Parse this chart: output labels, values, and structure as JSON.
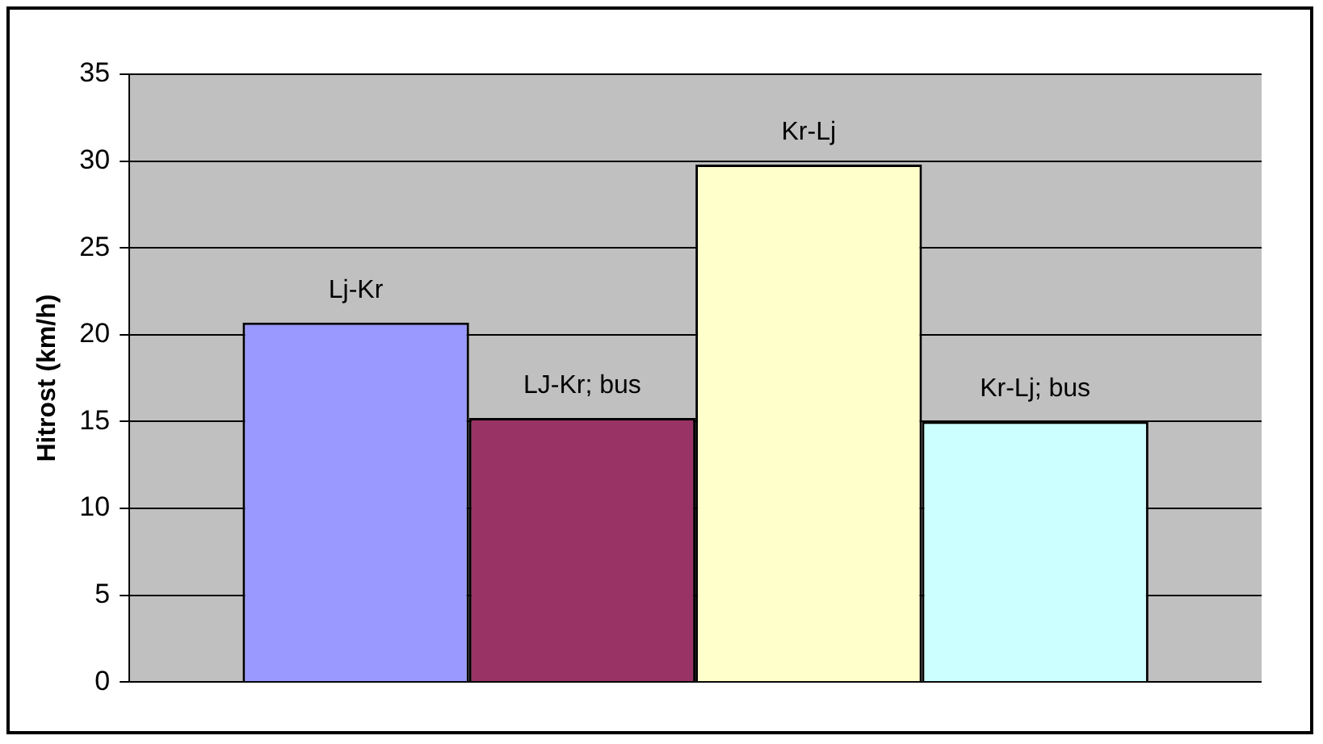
{
  "chart_data": {
    "type": "bar",
    "ylabel": "Hitrost (km/h)",
    "categories": [
      null
    ],
    "series": [
      {
        "name": "Lj-Kr",
        "color": "#9999ff",
        "values": [
          20.7
        ]
      },
      {
        "name": "LJ-Kr; bus",
        "color": "#993366",
        "values": [
          15.2
        ]
      },
      {
        "name": "Kr-Lj",
        "color": "#ffffcc",
        "values": [
          29.8
        ]
      },
      {
        "name": "Kr-Lj; bus",
        "color": "#ccffff",
        "values": [
          15.0
        ]
      }
    ],
    "ylim": [
      0,
      35
    ],
    "yticks": [
      0,
      5,
      10,
      15,
      20,
      25,
      30,
      35
    ],
    "grid": "y",
    "legend": false
  }
}
